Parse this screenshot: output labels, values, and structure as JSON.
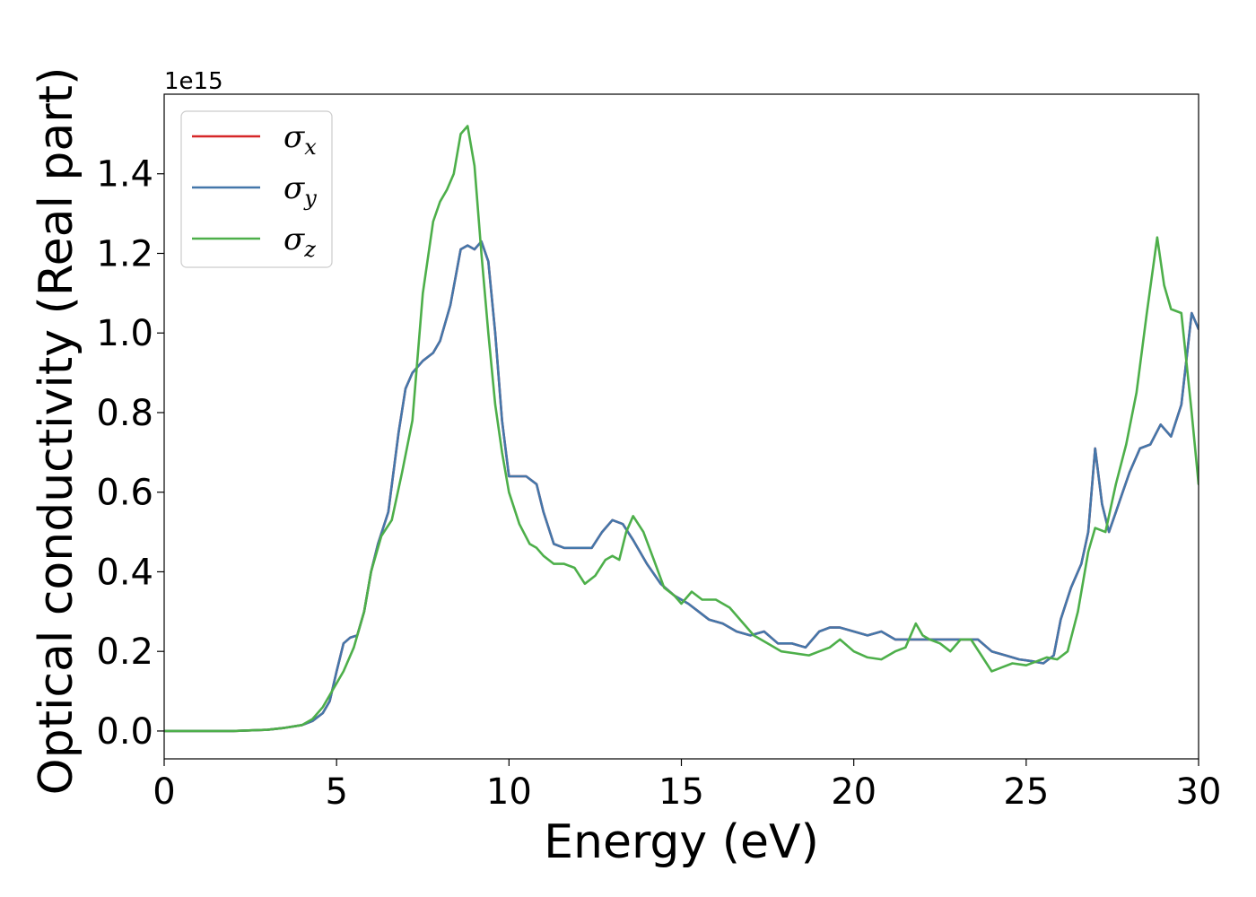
{
  "chart_data": {
    "type": "line",
    "xlabel": "Energy (eV)",
    "ylabel": "Optical conductivity (Real part)",
    "y_offset_label": "1e15",
    "xlim": [
      0,
      30
    ],
    "ylim": [
      -0.07,
      1.6
    ],
    "xticks": [
      0,
      5,
      10,
      15,
      20,
      25,
      30
    ],
    "xtick_labels": [
      "0",
      "5",
      "10",
      "15",
      "20",
      "25",
      "30"
    ],
    "yticks": [
      0.0,
      0.2,
      0.4,
      0.6,
      0.8,
      1.0,
      1.2,
      1.4
    ],
    "ytick_labels": [
      "0.0",
      "0.2",
      "0.4",
      "0.6",
      "0.8",
      "1.0",
      "1.2",
      "1.4"
    ],
    "grid": false,
    "legend_position": "top-left",
    "series": [
      {
        "name": "σ",
        "subscript": "x",
        "color": "#d62728",
        "x": [
          0,
          1,
          2,
          3,
          3.5,
          4,
          4.3,
          4.6,
          4.8,
          5.0,
          5.2,
          5.4,
          5.6,
          5.8,
          6.0,
          6.2,
          6.5,
          6.8,
          7.0,
          7.2,
          7.5,
          7.8,
          8.0,
          8.3,
          8.6,
          8.8,
          9.0,
          9.2,
          9.4,
          9.6,
          9.8,
          10.0,
          10.2,
          10.5,
          10.8,
          11.0,
          11.3,
          11.6,
          12.0,
          12.4,
          12.7,
          13.0,
          13.3,
          13.6,
          14.0,
          14.4,
          14.8,
          15.0,
          15.2,
          15.5,
          15.8,
          16.2,
          16.6,
          17.0,
          17.4,
          17.8,
          18.2,
          18.6,
          19.0,
          19.3,
          19.6,
          20.0,
          20.4,
          20.8,
          21.2,
          21.6,
          22.0,
          22.4,
          22.8,
          23.2,
          23.6,
          24.0,
          24.4,
          24.8,
          25.2,
          25.5,
          25.8,
          26.0,
          26.3,
          26.6,
          26.8,
          27.0,
          27.2,
          27.4,
          27.6,
          27.8,
          28.0,
          28.3,
          28.6,
          28.9,
          29.2,
          29.5,
          29.8,
          30.0
        ],
        "y": [
          0.0,
          0.0,
          0.0,
          0.003,
          0.008,
          0.015,
          0.025,
          0.045,
          0.075,
          0.15,
          0.22,
          0.235,
          0.24,
          0.3,
          0.4,
          0.47,
          0.55,
          0.75,
          0.86,
          0.9,
          0.93,
          0.95,
          0.98,
          1.07,
          1.21,
          1.22,
          1.21,
          1.23,
          1.18,
          1.0,
          0.78,
          0.64,
          0.64,
          0.64,
          0.62,
          0.55,
          0.47,
          0.46,
          0.46,
          0.46,
          0.5,
          0.53,
          0.52,
          0.48,
          0.42,
          0.37,
          0.34,
          0.33,
          0.32,
          0.3,
          0.28,
          0.27,
          0.25,
          0.24,
          0.25,
          0.22,
          0.22,
          0.21,
          0.25,
          0.26,
          0.26,
          0.25,
          0.24,
          0.25,
          0.23,
          0.23,
          0.23,
          0.23,
          0.23,
          0.23,
          0.23,
          0.2,
          0.19,
          0.18,
          0.175,
          0.17,
          0.19,
          0.28,
          0.36,
          0.42,
          0.5,
          0.71,
          0.57,
          0.5,
          0.55,
          0.6,
          0.65,
          0.71,
          0.72,
          0.77,
          0.74,
          0.82,
          1.05,
          1.01
        ]
      },
      {
        "name": "σ",
        "subscript": "y",
        "color": "#4477aa",
        "x": [
          0,
          1,
          2,
          3,
          3.5,
          4,
          4.3,
          4.6,
          4.8,
          5.0,
          5.2,
          5.4,
          5.6,
          5.8,
          6.0,
          6.2,
          6.5,
          6.8,
          7.0,
          7.2,
          7.5,
          7.8,
          8.0,
          8.3,
          8.6,
          8.8,
          9.0,
          9.2,
          9.4,
          9.6,
          9.8,
          10.0,
          10.2,
          10.5,
          10.8,
          11.0,
          11.3,
          11.6,
          12.0,
          12.4,
          12.7,
          13.0,
          13.3,
          13.6,
          14.0,
          14.4,
          14.8,
          15.0,
          15.2,
          15.5,
          15.8,
          16.2,
          16.6,
          17.0,
          17.4,
          17.8,
          18.2,
          18.6,
          19.0,
          19.3,
          19.6,
          20.0,
          20.4,
          20.8,
          21.2,
          21.6,
          22.0,
          22.4,
          22.8,
          23.2,
          23.6,
          24.0,
          24.4,
          24.8,
          25.2,
          25.5,
          25.8,
          26.0,
          26.3,
          26.6,
          26.8,
          27.0,
          27.2,
          27.4,
          27.6,
          27.8,
          28.0,
          28.3,
          28.6,
          28.9,
          29.2,
          29.5,
          29.8,
          30.0
        ],
        "y": [
          0.0,
          0.0,
          0.0,
          0.003,
          0.008,
          0.015,
          0.025,
          0.045,
          0.075,
          0.15,
          0.22,
          0.235,
          0.24,
          0.3,
          0.4,
          0.47,
          0.55,
          0.75,
          0.86,
          0.9,
          0.93,
          0.95,
          0.98,
          1.07,
          1.21,
          1.22,
          1.21,
          1.23,
          1.18,
          1.0,
          0.78,
          0.64,
          0.64,
          0.64,
          0.62,
          0.55,
          0.47,
          0.46,
          0.46,
          0.46,
          0.5,
          0.53,
          0.52,
          0.48,
          0.42,
          0.37,
          0.34,
          0.33,
          0.32,
          0.3,
          0.28,
          0.27,
          0.25,
          0.24,
          0.25,
          0.22,
          0.22,
          0.21,
          0.25,
          0.26,
          0.26,
          0.25,
          0.24,
          0.25,
          0.23,
          0.23,
          0.23,
          0.23,
          0.23,
          0.23,
          0.23,
          0.2,
          0.19,
          0.18,
          0.175,
          0.17,
          0.19,
          0.28,
          0.36,
          0.42,
          0.5,
          0.71,
          0.57,
          0.5,
          0.55,
          0.6,
          0.65,
          0.71,
          0.72,
          0.77,
          0.74,
          0.82,
          1.05,
          1.01
        ]
      },
      {
        "name": "σ",
        "subscript": "z",
        "color": "#4daf4a",
        "x": [
          0,
          1,
          2,
          3,
          3.5,
          4,
          4.3,
          4.6,
          4.8,
          5.0,
          5.2,
          5.5,
          5.8,
          6.0,
          6.3,
          6.6,
          6.9,
          7.2,
          7.5,
          7.8,
          8.0,
          8.2,
          8.4,
          8.6,
          8.8,
          9.0,
          9.2,
          9.4,
          9.6,
          9.8,
          10.0,
          10.3,
          10.6,
          10.8,
          11.0,
          11.3,
          11.6,
          11.9,
          12.2,
          12.5,
          12.8,
          13.0,
          13.2,
          13.4,
          13.6,
          13.9,
          14.2,
          14.5,
          14.8,
          15.0,
          15.3,
          15.6,
          16.0,
          16.4,
          16.8,
          17.1,
          17.5,
          17.9,
          18.3,
          18.7,
          19.0,
          19.3,
          19.6,
          20.0,
          20.4,
          20.8,
          21.2,
          21.5,
          21.8,
          22.0,
          22.2,
          22.5,
          22.8,
          23.1,
          23.4,
          23.7,
          24.0,
          24.3,
          24.6,
          25.0,
          25.3,
          25.6,
          25.9,
          26.2,
          26.5,
          26.8,
          27.0,
          27.3,
          27.6,
          27.9,
          28.2,
          28.5,
          28.8,
          29.0,
          29.2,
          29.5,
          29.8,
          30.0
        ],
        "y": [
          0.0,
          0.0,
          0.0,
          0.003,
          0.008,
          0.015,
          0.03,
          0.06,
          0.09,
          0.12,
          0.15,
          0.21,
          0.3,
          0.4,
          0.49,
          0.53,
          0.65,
          0.78,
          1.1,
          1.28,
          1.33,
          1.36,
          1.4,
          1.5,
          1.52,
          1.42,
          1.2,
          1.0,
          0.82,
          0.7,
          0.6,
          0.52,
          0.47,
          0.46,
          0.44,
          0.42,
          0.42,
          0.41,
          0.37,
          0.39,
          0.43,
          0.44,
          0.43,
          0.5,
          0.54,
          0.5,
          0.43,
          0.36,
          0.34,
          0.32,
          0.35,
          0.33,
          0.33,
          0.31,
          0.27,
          0.24,
          0.22,
          0.2,
          0.195,
          0.19,
          0.2,
          0.21,
          0.23,
          0.2,
          0.185,
          0.18,
          0.2,
          0.21,
          0.27,
          0.24,
          0.23,
          0.22,
          0.2,
          0.23,
          0.23,
          0.19,
          0.15,
          0.16,
          0.17,
          0.165,
          0.175,
          0.185,
          0.18,
          0.2,
          0.3,
          0.45,
          0.51,
          0.5,
          0.62,
          0.72,
          0.85,
          1.05,
          1.24,
          1.12,
          1.06,
          1.05,
          0.8,
          0.62
        ]
      }
    ]
  }
}
